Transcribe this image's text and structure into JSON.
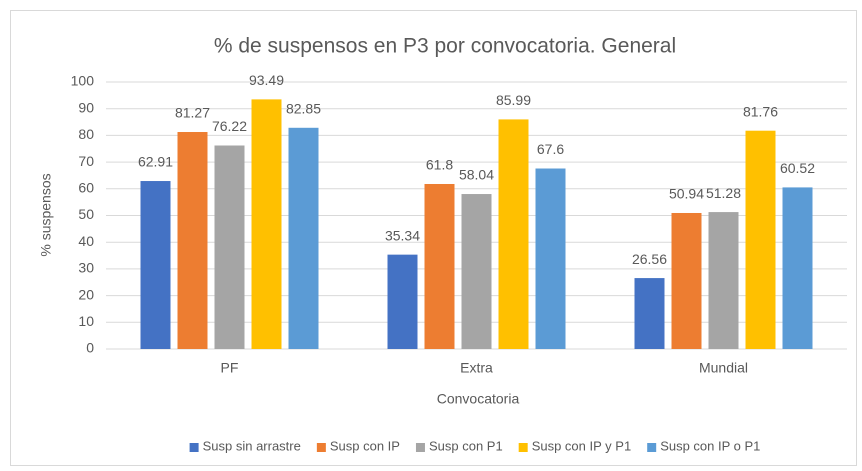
{
  "chart_data": {
    "type": "bar",
    "title": "% de suspensos en P3 por convocatoria. General",
    "x_label": "Convocatoria",
    "y_label": "% suspensos",
    "categories": [
      "PF",
      "Extra",
      "Mundial"
    ],
    "series": [
      {
        "name": "Susp sin arrastre",
        "color": "#4472c4",
        "values": [
          62.91,
          35.34,
          26.56
        ]
      },
      {
        "name": "Susp con IP",
        "color": "#ed7d31",
        "values": [
          81.27,
          61.8,
          50.94
        ]
      },
      {
        "name": "Susp con P1",
        "color": "#a5a5a5",
        "values": [
          76.22,
          58.04,
          51.28
        ]
      },
      {
        "name": "Susp con IP y P1",
        "color": "#ffc000",
        "values": [
          93.49,
          85.99,
          81.76
        ]
      },
      {
        "name": "Susp con IP o P1",
        "color": "#5b9bd5",
        "values": [
          82.85,
          67.6,
          60.52
        ]
      }
    ],
    "ylim": [
      0,
      100
    ],
    "yticks": [
      0,
      10,
      20,
      30,
      40,
      50,
      60,
      70,
      80,
      90,
      100
    ],
    "grid": true,
    "legend": "bottom"
  }
}
